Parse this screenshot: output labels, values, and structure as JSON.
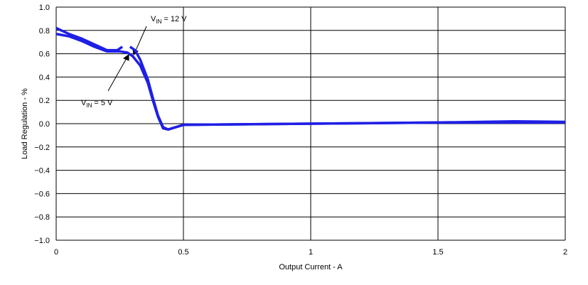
{
  "chart_data": {
    "type": "line",
    "x_label": "Output Current - A",
    "y_label": "Load Regulation  - %",
    "xlim": [
      0,
      2
    ],
    "xticks": [
      0,
      0.5,
      1,
      1.5,
      2
    ],
    "ylim": [
      -1,
      1
    ],
    "yticks": [
      {
        "value": -1,
        "label": "−1.0"
      },
      {
        "value": -0.8,
        "label": "−0.8"
      },
      {
        "value": -0.6,
        "label": "−0.6"
      },
      {
        "value": -0.4,
        "label": "−0.4"
      },
      {
        "value": -0.2,
        "label": "−0.2"
      },
      {
        "value": 0,
        "label": "0.0"
      },
      0.2,
      0.4,
      0.6,
      0.8,
      {
        "value": 1,
        "label": "1.0"
      }
    ],
    "grid": true,
    "series": [
      {
        "color": "#1f1fe6",
        "x": [
          0,
          0.05,
          0.1,
          0.15,
          0.2,
          0.25,
          0.28,
          0.3,
          0.33,
          0.36,
          0.38,
          0.4,
          0.42,
          0.44,
          0.47,
          0.5,
          0.75,
          1.0,
          1.5,
          2.0
        ],
        "values": [
          0.77,
          0.75,
          0.71,
          0.66,
          0.62,
          0.62,
          0.61,
          0.58,
          0.5,
          0.35,
          0.2,
          0.06,
          -0.04,
          -0.05,
          -0.03,
          -0.01,
          -0.005,
          0.0,
          0.01,
          0.01
        ]
      },
      {
        "color": "#1f1fe6",
        "x": [
          0,
          0.05,
          0.1,
          0.15,
          0.2,
          0.24,
          0.26,
          0.275,
          0.29,
          0.31,
          0.33,
          0.36,
          0.38,
          0.4,
          0.42,
          0.44,
          0.47,
          0.5,
          1.0,
          1.5,
          1.8,
          2.0
        ],
        "values": [
          0.82,
          0.77,
          0.73,
          0.68,
          0.63,
          0.63,
          0.66,
          null,
          0.66,
          0.63,
          0.55,
          0.38,
          0.22,
          0.07,
          -0.03,
          -0.05,
          -0.03,
          -0.01,
          0.0,
          0.01,
          0.02,
          0.015
        ]
      }
    ],
    "annotations": [
      {
        "base": "V",
        "sub": "IN",
        "text": " = 12 V"
      },
      {
        "base": "V",
        "sub": "IN",
        "text": " = 5 V"
      }
    ]
  }
}
